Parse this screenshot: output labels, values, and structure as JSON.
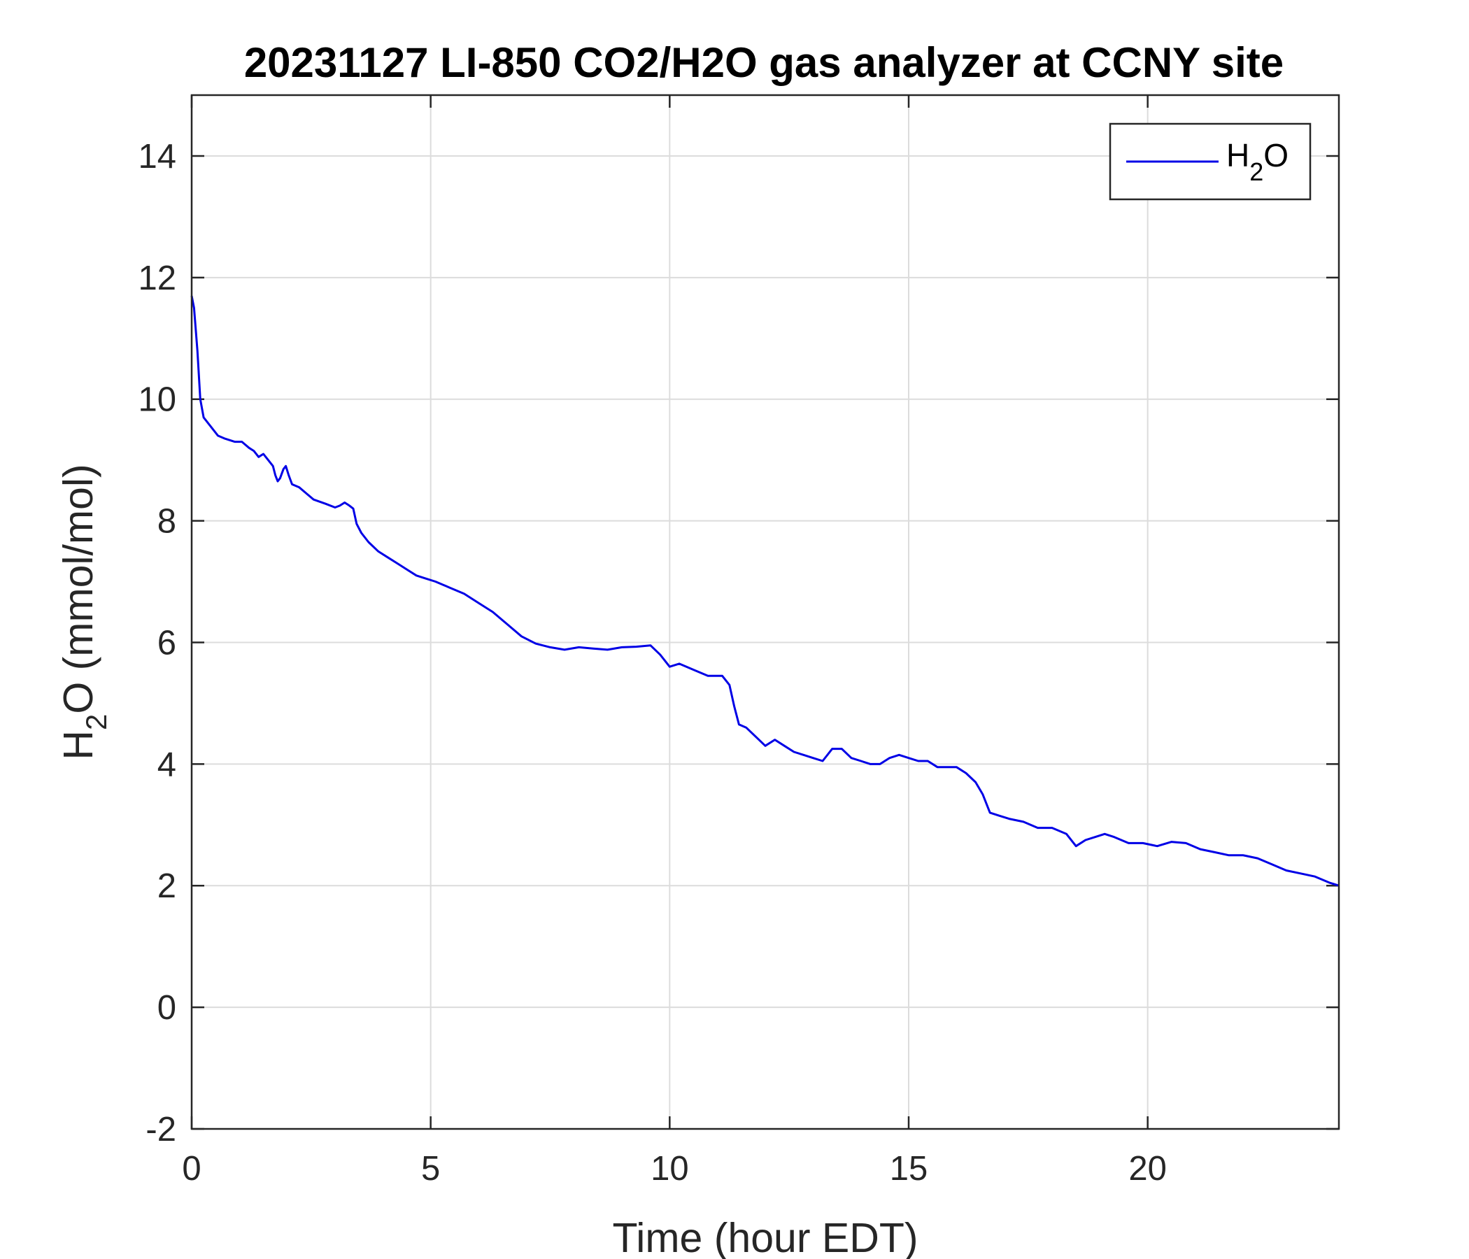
{
  "chart_data": {
    "type": "line",
    "title": "20231127 LI-850 CO2/H2O gas analyzer at CCNY site",
    "xlabel": "Time (hour EDT)",
    "ylabel": {
      "main": "H",
      "sub": "2",
      "rest": "O (mmol/mol)"
    },
    "xlim": [
      0,
      24
    ],
    "ylim": [
      -2,
      15
    ],
    "xticks": [
      0,
      5,
      10,
      15,
      20
    ],
    "yticks": [
      -2,
      0,
      2,
      4,
      6,
      8,
      10,
      12,
      14
    ],
    "grid": true,
    "legend_position": "top-right",
    "series": [
      {
        "name": {
          "main": "H",
          "sub": "2",
          "rest": "O"
        },
        "color": "#0000e6",
        "points": [
          [
            0.0,
            11.7
          ],
          [
            0.05,
            11.5
          ],
          [
            0.12,
            10.8
          ],
          [
            0.18,
            10.0
          ],
          [
            0.25,
            9.7
          ],
          [
            0.4,
            9.55
          ],
          [
            0.55,
            9.4
          ],
          [
            0.7,
            9.35
          ],
          [
            0.9,
            9.3
          ],
          [
            1.05,
            9.3
          ],
          [
            1.2,
            9.2
          ],
          [
            1.3,
            9.15
          ],
          [
            1.4,
            9.05
          ],
          [
            1.5,
            9.1
          ],
          [
            1.6,
            9.0
          ],
          [
            1.7,
            8.9
          ],
          [
            1.75,
            8.75
          ],
          [
            1.8,
            8.65
          ],
          [
            1.85,
            8.7
          ],
          [
            1.92,
            8.85
          ],
          [
            1.97,
            8.9
          ],
          [
            2.03,
            8.75
          ],
          [
            2.1,
            8.6
          ],
          [
            2.25,
            8.55
          ],
          [
            2.4,
            8.45
          ],
          [
            2.55,
            8.35
          ],
          [
            2.8,
            8.28
          ],
          [
            3.0,
            8.22
          ],
          [
            3.1,
            8.25
          ],
          [
            3.2,
            8.3
          ],
          [
            3.3,
            8.25
          ],
          [
            3.38,
            8.2
          ],
          [
            3.45,
            7.95
          ],
          [
            3.55,
            7.8
          ],
          [
            3.7,
            7.65
          ],
          [
            3.9,
            7.5
          ],
          [
            4.1,
            7.4
          ],
          [
            4.3,
            7.3
          ],
          [
            4.5,
            7.2
          ],
          [
            4.7,
            7.1
          ],
          [
            4.9,
            7.05
          ],
          [
            5.1,
            7.0
          ],
          [
            5.4,
            6.9
          ],
          [
            5.7,
            6.8
          ],
          [
            6.0,
            6.65
          ],
          [
            6.3,
            6.5
          ],
          [
            6.6,
            6.3
          ],
          [
            6.9,
            6.1
          ],
          [
            7.2,
            5.98
          ],
          [
            7.5,
            5.92
          ],
          [
            7.8,
            5.88
          ],
          [
            8.1,
            5.92
          ],
          [
            8.4,
            5.9
          ],
          [
            8.7,
            5.88
          ],
          [
            9.0,
            5.92
          ],
          [
            9.3,
            5.93
          ],
          [
            9.6,
            5.95
          ],
          [
            9.8,
            5.8
          ],
          [
            10.0,
            5.6
          ],
          [
            10.2,
            5.65
          ],
          [
            10.5,
            5.55
          ],
          [
            10.8,
            5.45
          ],
          [
            11.1,
            5.45
          ],
          [
            11.25,
            5.3
          ],
          [
            11.35,
            4.95
          ],
          [
            11.45,
            4.65
          ],
          [
            11.6,
            4.6
          ],
          [
            11.8,
            4.45
          ],
          [
            12.0,
            4.3
          ],
          [
            12.2,
            4.4
          ],
          [
            12.4,
            4.3
          ],
          [
            12.6,
            4.2
          ],
          [
            12.8,
            4.15
          ],
          [
            13.0,
            4.1
          ],
          [
            13.2,
            4.05
          ],
          [
            13.4,
            4.25
          ],
          [
            13.6,
            4.25
          ],
          [
            13.8,
            4.1
          ],
          [
            14.0,
            4.05
          ],
          [
            14.2,
            4.0
          ],
          [
            14.4,
            4.0
          ],
          [
            14.6,
            4.1
          ],
          [
            14.8,
            4.15
          ],
          [
            15.0,
            4.1
          ],
          [
            15.2,
            4.05
          ],
          [
            15.4,
            4.05
          ],
          [
            15.6,
            3.95
          ],
          [
            15.8,
            3.95
          ],
          [
            16.0,
            3.95
          ],
          [
            16.2,
            3.85
          ],
          [
            16.4,
            3.7
          ],
          [
            16.55,
            3.5
          ],
          [
            16.7,
            3.2
          ],
          [
            16.9,
            3.15
          ],
          [
            17.1,
            3.1
          ],
          [
            17.4,
            3.05
          ],
          [
            17.7,
            2.95
          ],
          [
            18.0,
            2.95
          ],
          [
            18.3,
            2.85
          ],
          [
            18.5,
            2.65
          ],
          [
            18.7,
            2.75
          ],
          [
            18.9,
            2.8
          ],
          [
            19.1,
            2.85
          ],
          [
            19.3,
            2.8
          ],
          [
            19.6,
            2.7
          ],
          [
            19.9,
            2.7
          ],
          [
            20.2,
            2.65
          ],
          [
            20.5,
            2.72
          ],
          [
            20.8,
            2.7
          ],
          [
            21.1,
            2.6
          ],
          [
            21.4,
            2.55
          ],
          [
            21.7,
            2.5
          ],
          [
            22.0,
            2.5
          ],
          [
            22.3,
            2.45
          ],
          [
            22.6,
            2.35
          ],
          [
            22.9,
            2.25
          ],
          [
            23.2,
            2.2
          ],
          [
            23.5,
            2.15
          ],
          [
            23.8,
            2.05
          ],
          [
            24.0,
            2.0
          ]
        ]
      }
    ]
  }
}
